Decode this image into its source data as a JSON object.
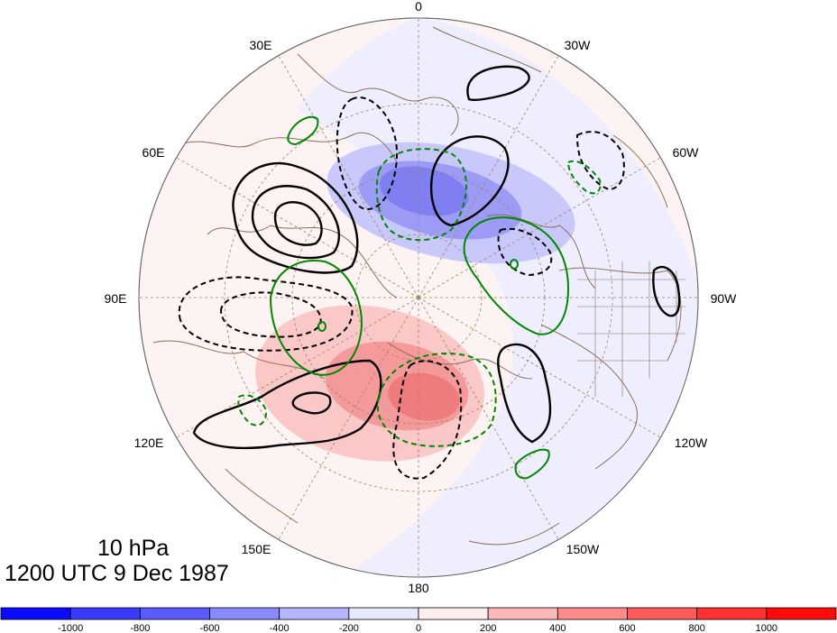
{
  "map": {
    "projection": "north-polar-stereographic",
    "longitude_labels": {
      "top": "0",
      "30E": "30E",
      "30W": "30W",
      "60E": "60E",
      "60W": "60W",
      "90E": "90E",
      "90W": "90W",
      "120E": "120E",
      "120W": "120W",
      "150E": "150E",
      "150W": "150W",
      "bottom": "180"
    },
    "contour_styles": {
      "positive": "black solid",
      "negative": "black dashed",
      "secondary_positive": "green solid",
      "secondary_negative": "green dashed"
    }
  },
  "titles": {
    "level": "10 hPa",
    "time": "1200 UTC 9 Dec 1987"
  },
  "colorbar": {
    "tick_labels": [
      "-1000",
      "-800",
      "-600",
      "-400",
      "-200",
      "0",
      "200",
      "400",
      "600",
      "800",
      "1000"
    ],
    "colors": [
      "#0a0aff",
      "#3a3aff",
      "#5a5aff",
      "#8a8aff",
      "#b4b4ff",
      "#e8e8ff",
      "#ffeeee",
      "#ffb8b8",
      "#ff8a8a",
      "#ff5a5a",
      "#ff3030",
      "#ff0a0a"
    ]
  },
  "colors": {
    "land_outline": "#8b6e55",
    "negative_field": "#8c8cf5",
    "positive_field": "#f59090",
    "green_contour": "#008800"
  }
}
